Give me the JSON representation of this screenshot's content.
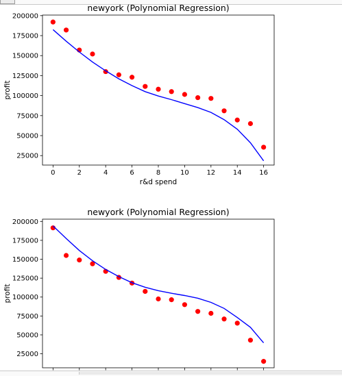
{
  "chart_data": [
    {
      "type": "scatter",
      "title": "newyork (Polynomial Regression)",
      "xlabel": "r&d spend",
      "ylabel": "profit",
      "xlim": [
        -0.8,
        16.8
      ],
      "ylim": [
        13200,
        200700
      ],
      "xticks": [
        "0",
        "2",
        "4",
        "6",
        "8",
        "10",
        "12",
        "14",
        "16"
      ],
      "yticks": [
        "25000",
        "50000",
        "75000",
        "100000",
        "125000",
        "150000",
        "175000",
        "200000"
      ],
      "series": [
        {
          "style": "points",
          "color": "#ff0000",
          "x": [
            0,
            1,
            2,
            3,
            4,
            5,
            6,
            7,
            8,
            9,
            10,
            11,
            12,
            13,
            14,
            15,
            16
          ],
          "y": [
            192000,
            182000,
            157000,
            152000,
            130000,
            126000,
            123000,
            111500,
            108000,
            105000,
            101500,
            97500,
            96500,
            81000,
            69500,
            65000,
            35500
          ]
        },
        {
          "style": "line",
          "color": "#0000ff",
          "x": [
            0,
            1,
            2,
            3,
            4,
            5,
            6,
            7,
            8,
            9,
            10,
            11,
            12,
            13,
            14,
            15,
            16
          ],
          "y": [
            182500,
            168000,
            154500,
            142000,
            131000,
            121000,
            112500,
            105000,
            99500,
            95000,
            90000,
            85000,
            79000,
            70000,
            58000,
            41000,
            18500
          ]
        }
      ]
    },
    {
      "type": "scatter",
      "title": "newyork (Polynomial Regression)",
      "xlabel": "",
      "ylabel": "profit",
      "xlim": [
        -0.8,
        16.8
      ],
      "ylim": [
        6500,
        203000
      ],
      "xticks": [],
      "yticks": [
        "25000",
        "50000",
        "75000",
        "100000",
        "125000",
        "150000",
        "175000",
        "200000"
      ],
      "series": [
        {
          "style": "points",
          "color": "#ff0000",
          "x": [
            0,
            1,
            2,
            3,
            4,
            5,
            6,
            7,
            8,
            9,
            10,
            11,
            12,
            13,
            14,
            15,
            16
          ],
          "y": [
            191500,
            155000,
            149000,
            144000,
            134000,
            126000,
            118500,
            107500,
            97500,
            96500,
            90000,
            81000,
            78500,
            71000,
            65500,
            43000,
            15000
          ]
        },
        {
          "style": "line",
          "color": "#0000ff",
          "x": [
            0,
            1,
            2,
            3,
            4,
            5,
            6,
            7,
            8,
            9,
            10,
            11,
            12,
            13,
            14,
            15,
            16
          ],
          "y": [
            194000,
            177500,
            161500,
            148000,
            136500,
            127000,
            119000,
            113000,
            108500,
            105000,
            102000,
            98500,
            93000,
            85000,
            73000,
            60000,
            39500
          ]
        }
      ]
    }
  ]
}
